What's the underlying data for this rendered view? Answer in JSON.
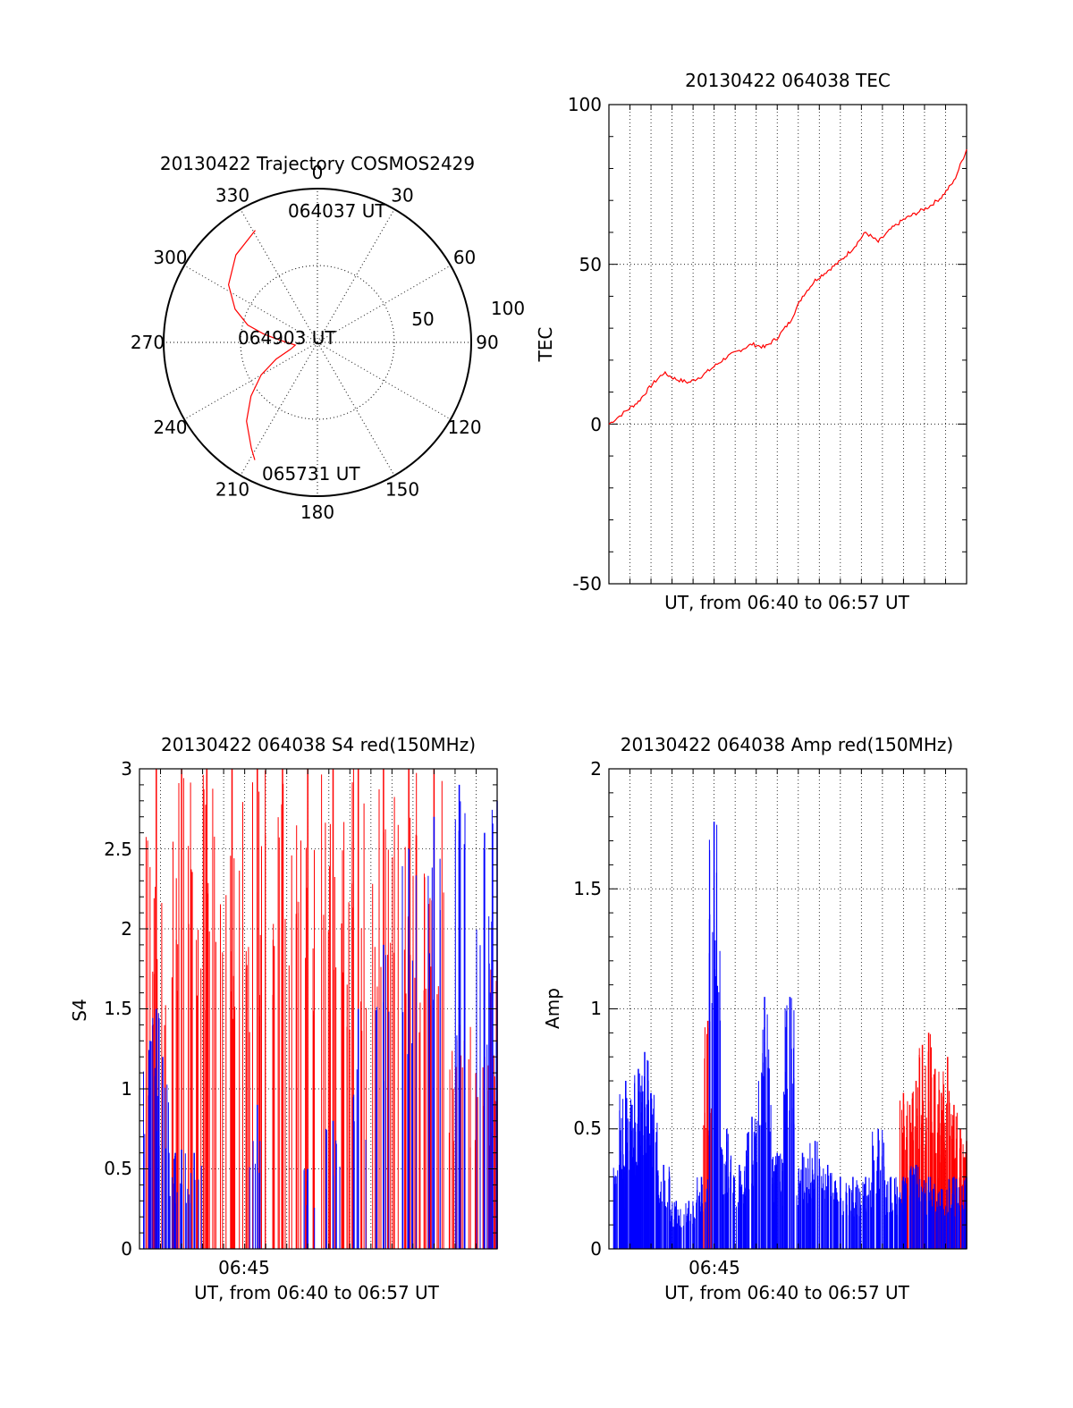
{
  "polar": {
    "title": "20130422 Trajectory COSMOS2429",
    "azimuth_labels": [
      "0",
      "30",
      "60",
      "90",
      "120",
      "150",
      "180",
      "210",
      "240",
      "270",
      "300",
      "330"
    ],
    "radial_labels": [
      "50",
      "100"
    ],
    "start_label": "064037 UT",
    "mid_label": "064903 UT",
    "end_label": "065731 UT",
    "trajectory_color": "#ff0000"
  },
  "tec": {
    "title": "20130422 064038 TEC",
    "ylabel": "TEC",
    "xlabel": "UT, from 06:40 to 06:57 UT",
    "ytick_labels": [
      "100",
      "50",
      "0",
      "-50"
    ],
    "line_color": "#ff0000"
  },
  "s4": {
    "title": "20130422 064038 S4 red(150MHz)",
    "ylabel": "S4",
    "xlabel": "UT, from 06:40 to 06:57 UT",
    "xtick_label": "06:45",
    "ytick_labels": [
      "3",
      "2.5",
      "2",
      "1.5",
      "1",
      "0.5",
      "0"
    ]
  },
  "amp": {
    "title": "20130422 064038 Amp red(150MHz)",
    "ylabel": "Amp",
    "xlabel": "UT, from 06:40 to 06:57 UT",
    "xtick_label": "06:45",
    "ytick_labels": [
      "2",
      "1.5",
      "1",
      "0.5",
      "0"
    ]
  },
  "colors": {
    "red_series": "#ff0000",
    "blue_series": "#0000ff"
  },
  "chart_data": [
    {
      "type": "scatter",
      "title": "20130422 Trajectory COSMOS2429",
      "series": [
        {
          "azimuth_deg": [
            331,
            317,
            303,
            292,
            284,
            279,
            276,
            270,
            263,
            256,
            248,
            240,
            231,
            222,
            212,
            208
          ],
          "elevation_deg": [
            15,
            20,
            28,
            38,
            48,
            58,
            64,
            72,
            77,
            74,
            64,
            52,
            40,
            28,
            17,
            12
          ]
        }
      ],
      "annotations": [
        "064037 UT",
        "064903 UT",
        "065731 UT"
      ],
      "radial_range": [
        0,
        100
      ],
      "grid": true
    },
    {
      "type": "line",
      "title": "20130422 064038 TEC",
      "xlabel": "UT, from 06:40 to 06:57 UT",
      "ylabel": "TEC",
      "ylim": [
        -50,
        100
      ],
      "grid": true,
      "series": [
        {
          "x": [
            6.6667,
            6.68,
            6.69,
            6.7,
            6.71,
            6.72,
            6.73,
            6.74,
            6.75,
            6.76,
            6.77,
            6.78,
            6.79,
            6.8,
            6.81,
            6.82,
            6.83,
            6.84,
            6.85,
            6.86,
            6.87,
            6.88,
            6.89,
            6.9,
            6.91,
            6.92,
            6.93,
            6.94,
            6.95
          ],
          "values": [
            0,
            4,
            7,
            12,
            16,
            14,
            13,
            15,
            18,
            21,
            23,
            25,
            24,
            27,
            32,
            40,
            45,
            48,
            51,
            55,
            60,
            57,
            61,
            64,
            66,
            68,
            71,
            76,
            86
          ]
        }
      ]
    },
    {
      "type": "bar",
      "title": "20130422 064038 S4 red(150MHz)",
      "xlabel": "UT, from 06:40 to 06:57 UT",
      "ylabel": "S4",
      "ylim": [
        0,
        3
      ],
      "grid": true,
      "series": [
        {
          "name": "",
          "color": "#ff0000",
          "x": [
            6.68,
            6.7,
            6.72,
            6.74,
            6.76,
            6.78,
            6.8,
            6.82,
            6.84,
            6.86,
            6.88,
            6.9,
            6.92,
            6.94,
            6.95
          ],
          "values": [
            3,
            3,
            3,
            3,
            3,
            3,
            3,
            3,
            3,
            3,
            3,
            3,
            1.4,
            1.2,
            1.8
          ]
        },
        {
          "name": "",
          "color": "#0000ff",
          "x": [
            6.675,
            6.68,
            6.685,
            6.69,
            6.695,
            6.7,
            6.71,
            6.76,
            6.8,
            6.82,
            6.84,
            6.86,
            6.88,
            6.9,
            6.92,
            6.94,
            6.95
          ],
          "values": [
            1.3,
            1.5,
            1.2,
            0.6,
            0.6,
            0.62,
            0.6,
            0.9,
            0.5,
            0.8,
            1.5,
            1.9,
            2.5,
            2.7,
            2.9,
            2.6,
            2.8
          ]
        }
      ]
    },
    {
      "type": "bar",
      "title": "20130422 064038 Amp red(150MHz)",
      "xlabel": "UT, from 06:40 to 06:57 UT",
      "ylabel": "Amp",
      "ylim": [
        0,
        2
      ],
      "grid": true,
      "series": [
        {
          "name": "",
          "color": "#0000ff",
          "x": [
            6.675,
            6.68,
            6.685,
            6.69,
            6.695,
            6.7,
            6.71,
            6.72,
            6.73,
            6.74,
            6.75,
            6.76,
            6.77,
            6.78,
            6.79,
            6.8,
            6.81,
            6.82,
            6.83,
            6.84,
            6.85,
            6.86,
            6.87,
            6.88,
            6.89,
            6.9,
            6.91,
            6.92,
            6.93,
            6.94,
            6.95
          ],
          "values": [
            0.35,
            0.7,
            0.6,
            0.75,
            0.82,
            0.65,
            0.35,
            0.2,
            0.2,
            0.3,
            1.78,
            0.5,
            0.35,
            0.55,
            1.05,
            0.4,
            1.05,
            0.4,
            0.45,
            0.35,
            0.3,
            0.3,
            0.3,
            0.5,
            0.3,
            0.3,
            0.35,
            0.3,
            0.25,
            0.3,
            0.3
          ]
        },
        {
          "name": "",
          "color": "#ff0000",
          "x": [
            6.745,
            6.9,
            6.905,
            6.91,
            6.915,
            6.92,
            6.925,
            6.93,
            6.935,
            6.94,
            6.945,
            6.95
          ],
          "values": [
            0.95,
            0.65,
            0.6,
            0.7,
            0.85,
            0.9,
            0.75,
            0.65,
            0.8,
            0.6,
            0.5,
            0.45
          ]
        }
      ]
    }
  ]
}
